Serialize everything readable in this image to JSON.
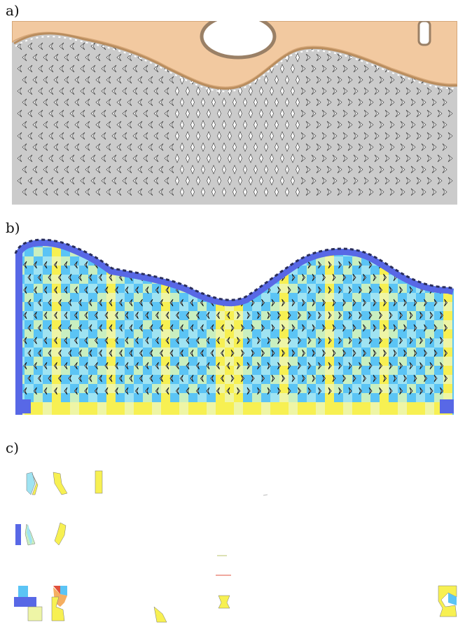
{
  "panels": {
    "a": {
      "label": "a)"
    },
    "b": {
      "label": "b)"
    },
    "c": {
      "label": "c)"
    }
  },
  "colors": {
    "grate": "#cbcbcb",
    "grate_edge": "#b5b5b5",
    "wood": "#f2c9a0",
    "wood_dark": "#d6a778",
    "outline": "#2a2d5c",
    "dark_blue": "#5868e6",
    "cyan": "#5bc4f5",
    "light_cyan": "#9fe3f2",
    "yellow": "#f7f052",
    "light_yellow": "#eef5a6",
    "pale_green": "#c9efc0",
    "red": "#e0503c",
    "orange": "#f29a3a"
  }
}
